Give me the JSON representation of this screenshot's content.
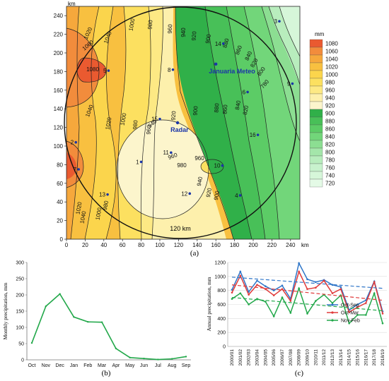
{
  "panels": {
    "a_label": "(a)",
    "b_label": "(b)",
    "c_label": "(c)"
  },
  "chart_data": [
    {
      "type": "contour",
      "panel": "(a)",
      "x_unit": "km",
      "y_unit": "km",
      "xlim": [
        0,
        250
      ],
      "ylim": [
        0,
        250
      ],
      "x_ticks": [
        "0",
        "20",
        "40",
        "60",
        "80",
        "100",
        "120",
        "140",
        "160",
        "180",
        "200",
        "220",
        "240"
      ],
      "y_ticks": [
        "0",
        "20",
        "40",
        "60",
        "80",
        "100",
        "120",
        "140",
        "160",
        "180",
        "200",
        "220",
        "240"
      ],
      "colorbar_unit": "mm",
      "colorbar_levels": [
        "1080",
        "1060",
        "1040",
        "1020",
        "1000",
        "980",
        "960",
        "940",
        "920",
        "900",
        "880",
        "860",
        "840",
        "820",
        "800",
        "780",
        "760",
        "740",
        "720"
      ],
      "colorbar_colors": [
        "#ea5a30",
        "#f28c3c",
        "#f6a83c",
        "#f8c040",
        "#fbd54c",
        "#fce060",
        "#fde984",
        "#fdf0ac",
        "#fcf5cc",
        "#30b049",
        "#48c058",
        "#5ccc66",
        "#72d67a",
        "#8cde92",
        "#a4e6aa",
        "#b8edbd",
        "#c8f2cd",
        "#d6f6d9",
        "#e4fae6"
      ],
      "contour_labels": [
        "1040",
        "1020",
        "1000",
        "980",
        "960",
        "940",
        "920",
        "900",
        "880",
        "860",
        "840",
        "820",
        "800",
        "780",
        "1060",
        "1080",
        "1040",
        "1020",
        "1000",
        "980",
        "960",
        "940",
        "920",
        "900",
        "880",
        "860",
        "840",
        "820",
        "960",
        "980",
        "940",
        "920",
        "900",
        "1020",
        "1040",
        "1000",
        "980",
        "960"
      ],
      "stations": [
        {
          "label": "1",
          "x": 80,
          "y": 83
        },
        {
          "label": "2",
          "x": 10,
          "y": 104
        },
        {
          "label": "3",
          "x": 228,
          "y": 234
        },
        {
          "label": "4",
          "x": 186,
          "y": 47
        },
        {
          "label": "5",
          "x": 45,
          "y": 181
        },
        {
          "label": "6",
          "x": 194,
          "y": 158
        },
        {
          "label": "7",
          "x": 13,
          "y": 75
        },
        {
          "label": "8",
          "x": 114,
          "y": 182
        },
        {
          "label": "9",
          "x": 242,
          "y": 167
        },
        {
          "label": "10",
          "x": 167,
          "y": 79
        },
        {
          "label": "11",
          "x": 112,
          "y": 93
        },
        {
          "label": "12",
          "x": 132,
          "y": 49
        },
        {
          "label": "13",
          "x": 44,
          "y": 48
        },
        {
          "label": "14",
          "x": 168,
          "y": 210
        },
        {
          "label": "15",
          "x": 100,
          "y": 129
        },
        {
          "label": "16",
          "x": 205,
          "y": 112
        }
      ],
      "named_points": [
        {
          "label": "Januaria Meteo",
          "x": 160,
          "y": 188
        },
        {
          "label": "Radar",
          "x": 119,
          "y": 125
        }
      ],
      "radius_label": "120 km"
    },
    {
      "type": "line",
      "panel": "(b)",
      "ylabel": "Monthly precipitation, mm",
      "categories": [
        "Oct",
        "Nov",
        "Dec",
        "Jan",
        "Feb",
        "Mar",
        "Apr",
        "May",
        "Jun",
        "Jul",
        "Aug",
        "Sep"
      ],
      "values": [
        52,
        165,
        203,
        132,
        117,
        116,
        35,
        7,
        4,
        1,
        3,
        10
      ],
      "ylim": [
        0,
        300
      ],
      "y_ticks": [
        "0",
        "50",
        "100",
        "150",
        "200",
        "250",
        "300"
      ],
      "color": "#22a84a"
    },
    {
      "type": "line",
      "panel": "(c)",
      "ylabel": "Annual precipitation, mm",
      "categories": [
        "2000/01",
        "2001/02",
        "2002/03",
        "2003/04",
        "2004/05",
        "2005/06",
        "2006/07",
        "2007/08",
        "2008/09",
        "2009/10",
        "2010/11",
        "2011/12",
        "2012/13",
        "2013/14",
        "2014/15",
        "2015/16",
        "2016/17",
        "2017/18",
        "2018/19"
      ],
      "ylim": [
        0,
        1200
      ],
      "y_ticks": [
        "0",
        "200",
        "400",
        "600",
        "800",
        "1000",
        "1200"
      ],
      "legend_position": "center-right",
      "series": [
        {
          "name": "Oct-Sep",
          "color": "#2e75c8",
          "values": [
            810,
            1070,
            780,
            940,
            860,
            800,
            870,
            680,
            1190,
            960,
            920,
            950,
            880,
            850,
            520,
            600,
            660,
            930,
            500
          ]
        },
        {
          "name": "Oct-Mar",
          "color": "#e03a3a",
          "values": [
            770,
            1010,
            740,
            880,
            820,
            730,
            820,
            650,
            1070,
            820,
            840,
            940,
            760,
            820,
            490,
            560,
            620,
            920,
            470
          ]
        },
        {
          "name": "Nov-Feb",
          "color": "#22a84a",
          "values": [
            680,
            760,
            600,
            680,
            640,
            430,
            700,
            480,
            830,
            470,
            650,
            740,
            620,
            730,
            330,
            450,
            450,
            760,
            330
          ]
        }
      ],
      "trendlines": [
        {
          "series": "Oct-Sep",
          "start": 990,
          "end": 830
        },
        {
          "series": "Oct-Mar",
          "start": 880,
          "end": 660
        },
        {
          "series": "Nov-Feb",
          "start": 700,
          "end": 510
        }
      ]
    }
  ]
}
